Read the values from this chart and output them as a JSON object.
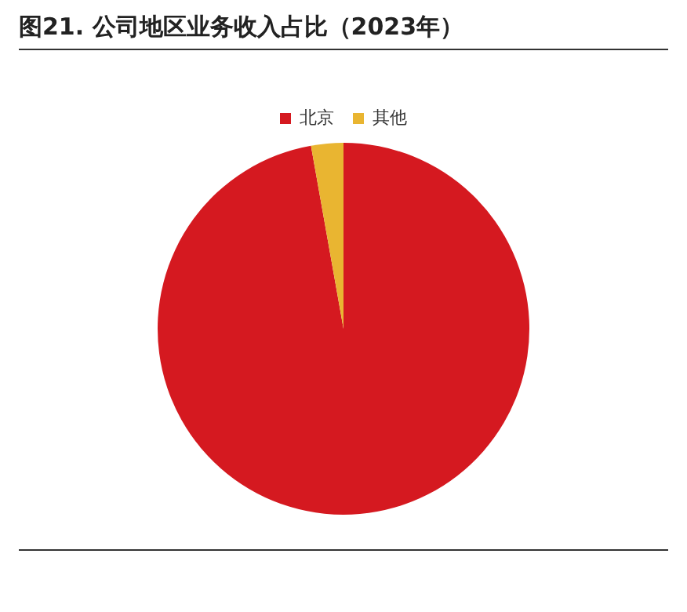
{
  "chart_data": {
    "type": "pie",
    "title": "图21. 公司地区业务收入占比（2023年）",
    "categories": [
      "北京",
      "其他"
    ],
    "values": [
      97.2,
      2.8
    ],
    "colors": [
      "#d51920",
      "#e9b531"
    ],
    "legend": "top"
  }
}
